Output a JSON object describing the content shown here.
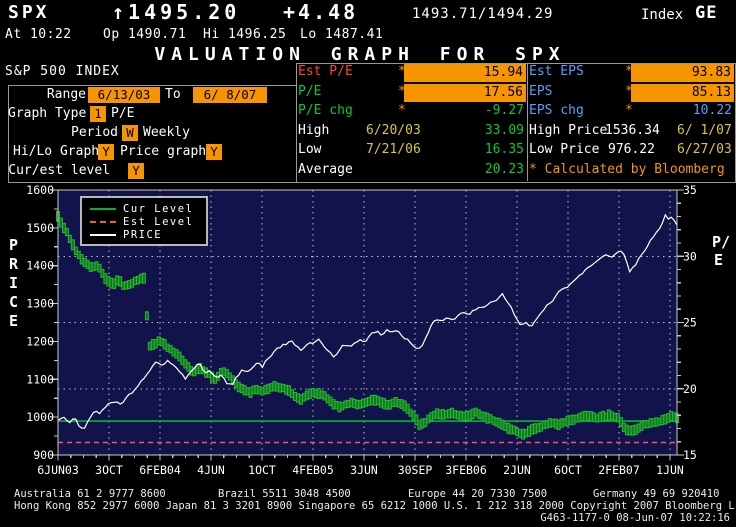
{
  "ticker": {
    "symbol": "SPX",
    "arrow": "↑",
    "last": "1495.20",
    "change": "+4.48",
    "bid_ask": "1493.71/1494.29",
    "index_label": "Index",
    "exchange": "GE",
    "at": "At 10:22",
    "open": "Op 1490.71",
    "high": "Hi 1496.25",
    "low": "Lo 1487.41"
  },
  "title": "VALUATION GRAPH FOR SPX",
  "panel": {
    "index_name": "S&P 500 INDEX",
    "range_label": "Range",
    "range_from": "6/13/03",
    "to_label": "To",
    "range_to": "6/ 8/07",
    "graph_type_label": "Graph Type",
    "graph_type_value": "1",
    "graph_type_name": "P/E",
    "period_label": "Period",
    "period_value": "W",
    "period_name": "Weekly",
    "hilo_label": "Hi/Lo Graph",
    "hilo_value": "Y",
    "price_graph_label": "Price graph",
    "price_graph_value": "Y",
    "cur_est_label": "Cur/est level",
    "cur_est_value": "Y",
    "stats": {
      "asterisk": "*",
      "est_pe_label": "Est P/E",
      "est_pe": "15.94",
      "pe_label": "P/E",
      "pe": "17.56",
      "pe_chg_label": "P/E chg",
      "pe_chg": "-9.27",
      "high_label": "High",
      "high_date": "6/20/03",
      "high": "33.09",
      "low_label": "Low",
      "low_date": "7/21/06",
      "low": "16.35",
      "avg_label": "Average",
      "avg": "20.23",
      "est_eps_label": "Est EPS",
      "est_eps": "93.83",
      "eps_label": "EPS",
      "eps": "85.13",
      "eps_chg_label": "EPS chg",
      "eps_chg": "10.22",
      "high_price_label": "High Price",
      "high_price": "1536.34",
      "high_price_date": "6/ 1/07",
      "low_price_label": "Low Price",
      "low_price": "976.22",
      "low_price_date": "6/27/03",
      "calculated": "* Calculated by Bloomberg"
    },
    "colors": {
      "highlight": "#f79500",
      "red": "#ff4040",
      "green": "#00cc33",
      "blue": "#5a9eff",
      "yellow": "#d8c63c"
    }
  },
  "chart_data": {
    "type": "line",
    "title": "Valuation graph for SPX: weekly PRICE vs P/E hi/lo bars",
    "y_left": {
      "label": "PRICE",
      "min": 900,
      "max": 1600,
      "ticks": [
        "1600",
        "1500",
        "1400",
        "1300",
        "1200",
        "1100",
        "1000",
        "900"
      ]
    },
    "y_right": {
      "label": "P/E",
      "min": 15,
      "max": 35,
      "ticks": [
        "35",
        "30",
        "25",
        "20",
        "15"
      ]
    },
    "x_ticks": [
      "6JUN03",
      "3OCT",
      "6FEB04",
      "4JUN",
      "1OCT",
      "4FEB05",
      "3JUN",
      "30SEP",
      "3FEB06",
      "2JUN",
      "6OCT",
      "2FEB07",
      "1JUN"
    ],
    "legend": [
      "Cur Level",
      "Est Level",
      "PRICE"
    ],
    "grid_pe": [
      30,
      25,
      20
    ],
    "levels": {
      "cur_level_pe": 17.56,
      "est_level_pe": 15.94
    },
    "colors": {
      "plot_bg": "#13134c",
      "grid": "#c0c0c0",
      "border": "#c8c8c8",
      "price_line": "#ffffff",
      "pe_bar_fill": "#0f7a1c",
      "pe_bar_stroke": "#2dbb36",
      "cur_level": "#00b52c",
      "est_level": "#f25a5a"
    },
    "series": {
      "price": {
        "name": "PRICE",
        "axis": "left",
        "kind": "line",
        "points": [
          [
            0,
            990
          ],
          [
            0.12,
            1002
          ],
          [
            0.22,
            985
          ],
          [
            0.32,
            998
          ],
          [
            0.42,
            978
          ],
          [
            0.5,
            968
          ],
          [
            0.62,
            995
          ],
          [
            0.72,
            1018
          ],
          [
            0.82,
            1008
          ],
          [
            0.95,
            1032
          ],
          [
            1.1,
            1040
          ],
          [
            1.25,
            1032
          ],
          [
            1.38,
            1058
          ],
          [
            1.5,
            1072
          ],
          [
            1.62,
            1092
          ],
          [
            1.72,
            1108
          ],
          [
            1.85,
            1133
          ],
          [
            1.95,
            1148
          ],
          [
            2.05,
            1133
          ],
          [
            2.15,
            1150
          ],
          [
            2.28,
            1138
          ],
          [
            2.4,
            1120
          ],
          [
            2.5,
            1098
          ],
          [
            2.6,
            1122
          ],
          [
            2.7,
            1135
          ],
          [
            2.8,
            1142
          ],
          [
            2.88,
            1110
          ],
          [
            2.98,
            1128
          ],
          [
            3.1,
            1100
          ],
          [
            3.2,
            1110
          ],
          [
            3.32,
            1090
          ],
          [
            3.42,
            1086
          ],
          [
            3.52,
            1110
          ],
          [
            3.62,
            1128
          ],
          [
            3.72,
            1120
          ],
          [
            3.82,
            1133
          ],
          [
            3.92,
            1146
          ],
          [
            4.0,
            1132
          ],
          [
            4.1,
            1152
          ],
          [
            4.22,
            1170
          ],
          [
            4.32,
            1183
          ],
          [
            4.45,
            1192
          ],
          [
            4.55,
            1204
          ],
          [
            4.65,
            1190
          ],
          [
            4.78,
            1178
          ],
          [
            4.88,
            1192
          ],
          [
            5.0,
            1196
          ],
          [
            5.1,
            1206
          ],
          [
            5.2,
            1190
          ],
          [
            5.32,
            1172
          ],
          [
            5.42,
            1160
          ],
          [
            5.52,
            1180
          ],
          [
            5.62,
            1192
          ],
          [
            5.72,
            1184
          ],
          [
            5.82,
            1196
          ],
          [
            5.92,
            1204
          ],
          [
            6.02,
            1198
          ],
          [
            6.12,
            1216
          ],
          [
            6.25,
            1228
          ],
          [
            6.35,
            1218
          ],
          [
            6.45,
            1230
          ],
          [
            6.55,
            1222
          ],
          [
            6.65,
            1230
          ],
          [
            6.78,
            1210
          ],
          [
            6.9,
            1200
          ],
          [
            7.0,
            1185
          ],
          [
            7.1,
            1180
          ],
          [
            7.2,
            1205
          ],
          [
            7.3,
            1240
          ],
          [
            7.42,
            1258
          ],
          [
            7.52,
            1250
          ],
          [
            7.62,
            1262
          ],
          [
            7.75,
            1256
          ],
          [
            7.85,
            1270
          ],
          [
            7.95,
            1278
          ],
          [
            8.05,
            1266
          ],
          [
            8.15,
            1282
          ],
          [
            8.28,
            1288
          ],
          [
            8.4,
            1295
          ],
          [
            8.5,
            1305
          ],
          [
            8.62,
            1312
          ],
          [
            8.7,
            1326
          ],
          [
            8.8,
            1308
          ],
          [
            8.9,
            1288
          ],
          [
            9.0,
            1255
          ],
          [
            9.08,
            1240
          ],
          [
            9.18,
            1252
          ],
          [
            9.28,
            1238
          ],
          [
            9.38,
            1262
          ],
          [
            9.48,
            1278
          ],
          [
            9.6,
            1295
          ],
          [
            9.7,
            1308
          ],
          [
            9.82,
            1330
          ],
          [
            9.95,
            1342
          ],
          [
            10.05,
            1352
          ],
          [
            10.18,
            1368
          ],
          [
            10.3,
            1382
          ],
          [
            10.42,
            1398
          ],
          [
            10.52,
            1408
          ],
          [
            10.65,
            1418
          ],
          [
            10.75,
            1428
          ],
          [
            10.85,
            1418
          ],
          [
            10.95,
            1432
          ],
          [
            11.05,
            1440
          ],
          [
            11.12,
            1428
          ],
          [
            11.2,
            1380
          ],
          [
            11.3,
            1398
          ],
          [
            11.4,
            1422
          ],
          [
            11.5,
            1442
          ],
          [
            11.6,
            1462
          ],
          [
            11.7,
            1482
          ],
          [
            11.78,
            1496
          ],
          [
            11.85,
            1512
          ],
          [
            11.92,
            1536
          ],
          [
            11.97,
            1520
          ],
          [
            12.05,
            1528
          ],
          [
            12.14,
            1505
          ]
        ]
      },
      "pe_hilo": {
        "name": "P/E",
        "axis": "right",
        "kind": "hilo_bars",
        "bar_spread": 0.26,
        "points": [
          [
            0,
            33.0
          ],
          [
            0.08,
            32.4
          ],
          [
            0.16,
            31.9
          ],
          [
            0.25,
            31.2
          ],
          [
            0.35,
            30.4
          ],
          [
            0.45,
            29.8
          ],
          [
            0.55,
            29.4
          ],
          [
            0.65,
            29.2
          ],
          [
            0.78,
            29.3
          ],
          [
            0.88,
            28.6
          ],
          [
            0.98,
            28.1
          ],
          [
            1.08,
            27.9
          ],
          [
            1.18,
            28.2
          ],
          [
            1.28,
            27.8
          ],
          [
            1.4,
            27.9
          ],
          [
            1.52,
            28.1
          ],
          [
            1.62,
            28.3
          ],
          [
            1.7,
            28.4
          ],
          [
            1.74,
            25.6
          ],
          [
            1.78,
            23.2
          ],
          [
            1.88,
            23.3
          ],
          [
            1.98,
            23.6
          ],
          [
            2.08,
            23.4
          ],
          [
            2.18,
            23.0
          ],
          [
            2.28,
            22.8
          ],
          [
            2.38,
            22.4
          ],
          [
            2.48,
            22.0
          ],
          [
            2.58,
            21.5
          ],
          [
            2.68,
            21.2
          ],
          [
            2.78,
            21.6
          ],
          [
            2.88,
            21.3
          ],
          [
            2.98,
            21.0
          ],
          [
            3.08,
            20.7
          ],
          [
            3.18,
            21.2
          ],
          [
            3.28,
            21.3
          ],
          [
            3.38,
            20.9
          ],
          [
            3.5,
            20.3
          ],
          [
            3.62,
            19.9
          ],
          [
            3.75,
            19.7
          ],
          [
            3.88,
            20.0
          ],
          [
            4.0,
            19.8
          ],
          [
            4.12,
            20.0
          ],
          [
            4.25,
            20.2
          ],
          [
            4.38,
            20.1
          ],
          [
            4.5,
            19.9
          ],
          [
            4.62,
            19.5
          ],
          [
            4.75,
            19.2
          ],
          [
            4.88,
            19.5
          ],
          [
            5.0,
            19.7
          ],
          [
            5.12,
            19.6
          ],
          [
            5.25,
            19.4
          ],
          [
            5.38,
            18.9
          ],
          [
            5.5,
            18.6
          ],
          [
            5.62,
            18.8
          ],
          [
            5.75,
            19.0
          ],
          [
            5.88,
            18.8
          ],
          [
            6.0,
            18.9
          ],
          [
            6.12,
            19.1
          ],
          [
            6.25,
            19.2
          ],
          [
            6.38,
            18.9
          ],
          [
            6.5,
            18.8
          ],
          [
            6.62,
            19.0
          ],
          [
            6.75,
            18.8
          ],
          [
            6.88,
            18.4
          ],
          [
            7.0,
            17.8
          ],
          [
            7.1,
            17.2
          ],
          [
            7.2,
            17.5
          ],
          [
            7.3,
            17.9
          ],
          [
            7.45,
            18.1
          ],
          [
            7.6,
            18.0
          ],
          [
            7.75,
            18.2
          ],
          [
            7.9,
            17.9
          ],
          [
            8.05,
            18.0
          ],
          [
            8.2,
            18.2
          ],
          [
            8.35,
            17.9
          ],
          [
            8.5,
            17.7
          ],
          [
            8.65,
            17.4
          ],
          [
            8.8,
            17.1
          ],
          [
            8.95,
            16.9
          ],
          [
            9.1,
            16.6
          ],
          [
            9.2,
            16.7
          ],
          [
            9.35,
            17.0
          ],
          [
            9.5,
            17.2
          ],
          [
            9.65,
            17.4
          ],
          [
            9.8,
            17.3
          ],
          [
            9.95,
            17.5
          ],
          [
            10.1,
            17.7
          ],
          [
            10.25,
            17.9
          ],
          [
            10.4,
            18.0
          ],
          [
            10.55,
            17.8
          ],
          [
            10.7,
            17.9
          ],
          [
            10.85,
            18.0
          ],
          [
            11.0,
            17.8
          ],
          [
            11.08,
            17.2
          ],
          [
            11.18,
            16.8
          ],
          [
            11.3,
            16.9
          ],
          [
            11.45,
            17.2
          ],
          [
            11.6,
            17.4
          ],
          [
            11.75,
            17.5
          ],
          [
            11.88,
            17.7
          ],
          [
            12.0,
            17.9
          ],
          [
            12.14,
            17.8
          ]
        ]
      }
    }
  },
  "footer": {
    "line1": [
      "Australia 61 2 9777 8600",
      "Brazil 5511 3048 4500",
      "Europe 44 20 7330 7500",
      "Germany 49 69 920410"
    ],
    "line2": "Hong Kong 852 2977 6000 Japan 81 3 3201 8900 Singapore 65 6212 1000 U.S. 1 212 318 2000 Copyright 2007 Bloomberg L.P.",
    "line3": "G463-1177-0 08-Jun-07 10:22:16"
  }
}
